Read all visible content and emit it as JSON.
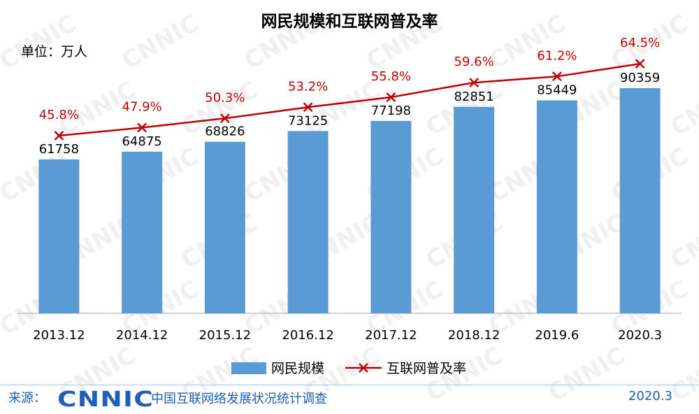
{
  "chart_data": {
    "type": "bar",
    "title": "网民规模和互联网普及率",
    "unit_label": "单位：万人",
    "categories": [
      "2013.12",
      "2014.12",
      "2015.12",
      "2016.12",
      "2017.12",
      "2018.12",
      "2019.6",
      "2020.3"
    ],
    "series": [
      {
        "name": "网民规模",
        "type": "bar",
        "color": "#5b9bd5",
        "values": [
          61758,
          64875,
          68826,
          73125,
          77198,
          82851,
          85449,
          90359
        ]
      },
      {
        "name": "互联网普及率",
        "type": "line",
        "color": "#c00000",
        "values": [
          45.8,
          47.9,
          50.3,
          53.2,
          55.8,
          59.6,
          61.2,
          64.5
        ],
        "value_labels": [
          "45.8%",
          "47.9%",
          "50.3%",
          "53.2%",
          "55.8%",
          "59.6%",
          "61.2%",
          "64.5%"
        ]
      }
    ],
    "legend_position": "bottom",
    "grid": false
  },
  "footer": {
    "source_label": "来源：",
    "logo_text": "CNNIC",
    "subtitle": "中国互联网络发展状况统计调查",
    "date": "2020.3"
  },
  "watermark_text": "CNNIC",
  "colors": {
    "bar": "#5b9bd5",
    "line": "#c00000",
    "brand": "#1f5fb4"
  }
}
